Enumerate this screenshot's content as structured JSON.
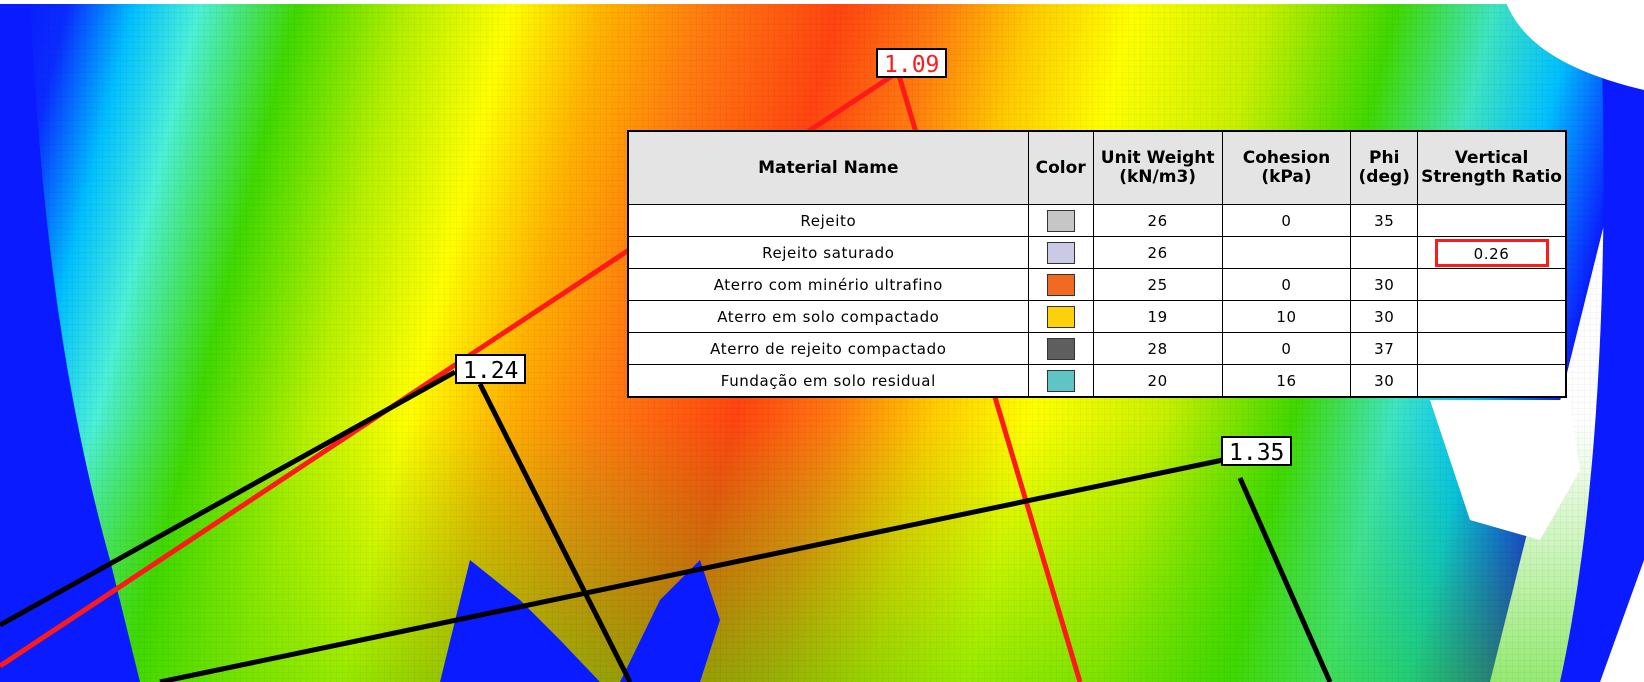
{
  "fos_labels": [
    {
      "id": "fos-1",
      "text": "1.09",
      "color": "#ff1a1a"
    },
    {
      "id": "fos-2",
      "text": "1.24",
      "color": "#000000"
    },
    {
      "id": "fos-3",
      "text": "1.35",
      "color": "#000000"
    }
  ],
  "table": {
    "headers": {
      "material_name": "Material Name",
      "color": "Color",
      "unit_weight": "Unit Weight (kN/m3)",
      "cohesion": "Cohesion (kPa)",
      "phi": "Phi (deg)",
      "vsr": "Vertical Strength Ratio"
    },
    "rows": [
      {
        "name": "Rejeito",
        "swatch": "#c6c6c6",
        "unit_weight": "26",
        "cohesion": "0",
        "phi": "35",
        "vsr": ""
      },
      {
        "name": "Rejeito saturado",
        "swatch": "#cacae6",
        "unit_weight": "26",
        "cohesion": "",
        "phi": "",
        "vsr": "0.26"
      },
      {
        "name": "Aterro com minério ultrafino",
        "swatch": "#f26a22",
        "unit_weight": "25",
        "cohesion": "0",
        "phi": "30",
        "vsr": ""
      },
      {
        "name": "Aterro em solo compactado",
        "swatch": "#fcd10c",
        "unit_weight": "19",
        "cohesion": "10",
        "phi": "30",
        "vsr": ""
      },
      {
        "name": "Aterro de rejeito compactado",
        "swatch": "#5e5e5e",
        "unit_weight": "28",
        "cohesion": "0",
        "phi": "37",
        "vsr": ""
      },
      {
        "name": "Fundação em solo residual",
        "swatch": "#5ec4c4",
        "unit_weight": "20",
        "cohesion": "16",
        "phi": "30",
        "vsr": ""
      }
    ]
  },
  "colors": {
    "contour_scale": [
      "#0a1cff",
      "#00bfff",
      "#4cf0d8",
      "#40d800",
      "#c8f000",
      "#ffff00",
      "#ffa000",
      "#ff5a10",
      "#ff3010"
    ],
    "highlight": "#ff1a1a"
  }
}
